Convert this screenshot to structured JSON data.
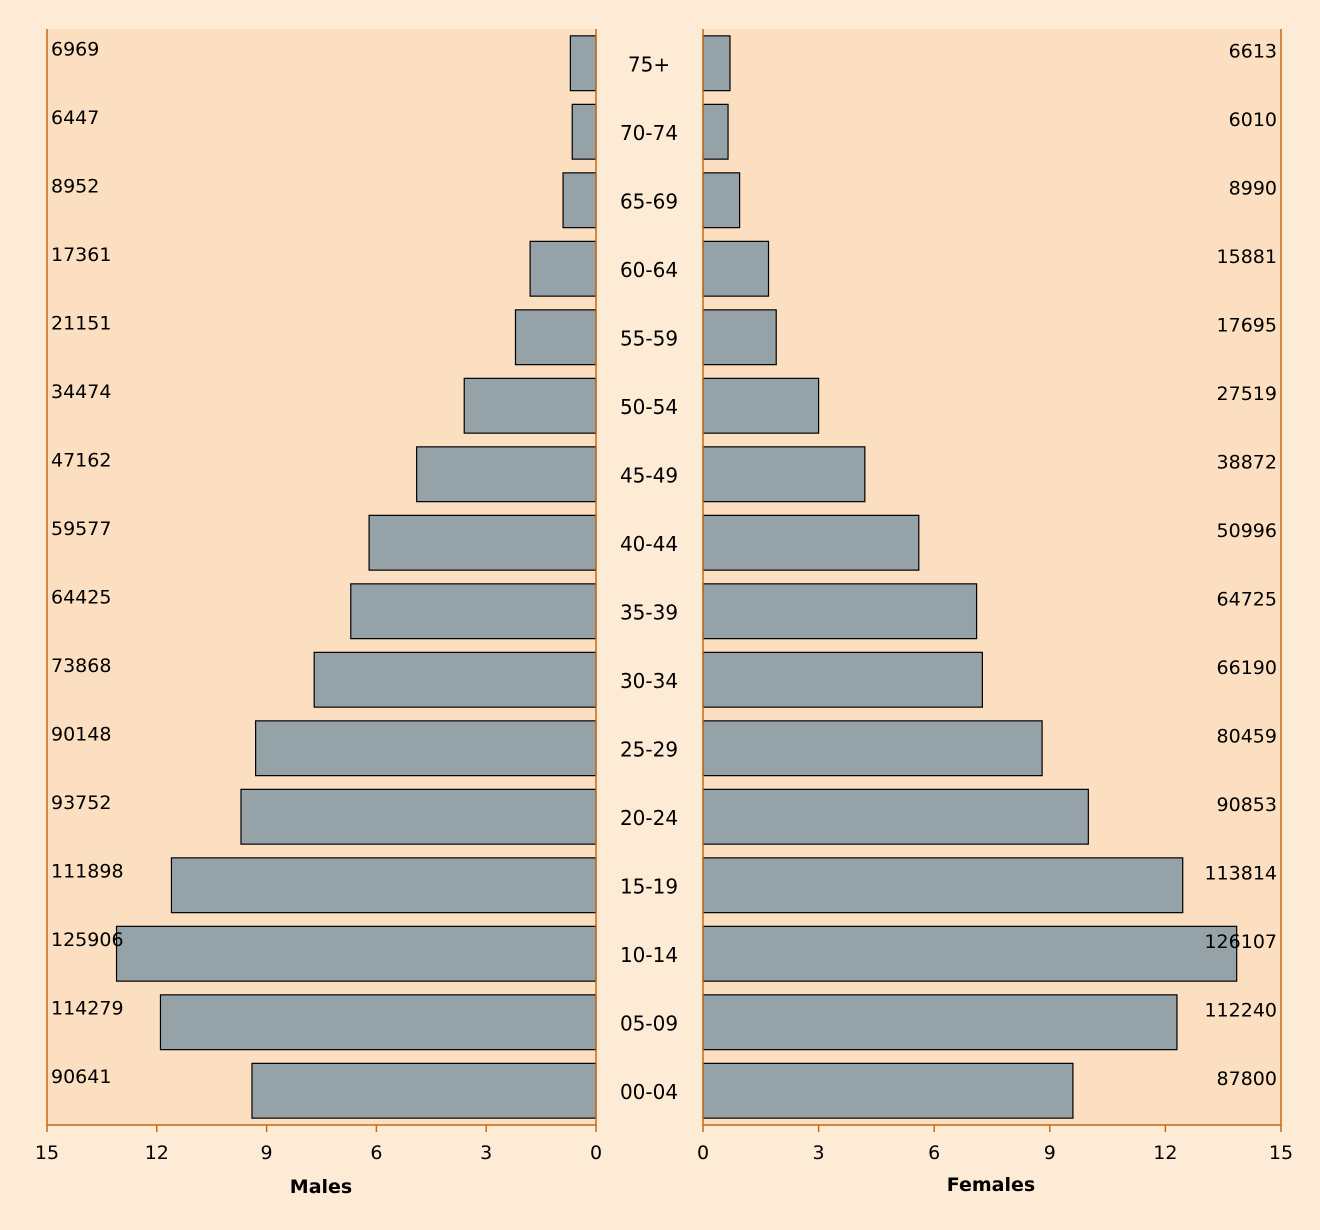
{
  "chart_data": {
    "type": "bar",
    "orientation": "horizontal",
    "subtype": "population-pyramid",
    "age_groups": [
      "75+",
      "70-74",
      "65-69",
      "60-64",
      "55-59",
      "50-54",
      "45-49",
      "40-44",
      "35-39",
      "30-34",
      "25-29",
      "20-24",
      "15-19",
      "10-14",
      "05-09",
      "00-04"
    ],
    "males": {
      "xlabel": "Males",
      "xlim": [
        15,
        0
      ],
      "ticks": [
        15,
        12,
        9,
        6,
        3,
        0
      ],
      "percent": [
        0.7,
        0.65,
        0.9,
        1.8,
        2.2,
        3.6,
        4.9,
        6.2,
        6.7,
        7.7,
        9.3,
        9.7,
        11.6,
        13.1,
        11.9,
        9.4
      ],
      "counts": [
        "6969",
        "6447",
        "8952",
        "17361",
        "21151",
        "34474",
        "47162",
        "59577",
        "64425",
        "73868",
        "90148",
        "93752",
        "111898",
        "125906",
        "114279",
        "90641"
      ]
    },
    "females": {
      "xlabel": "Females",
      "xlim": [
        0,
        15
      ],
      "ticks": [
        0,
        3,
        6,
        9,
        12,
        15
      ],
      "percent": [
        0.7,
        0.65,
        0.95,
        1.7,
        1.9,
        3.0,
        4.2,
        5.6,
        7.1,
        7.25,
        8.8,
        10.0,
        12.45,
        13.85,
        12.3,
        9.6
      ],
      "counts": [
        "6613",
        "6010",
        "8990",
        "15881",
        "17695",
        "27519",
        "38872",
        "50996",
        "64725",
        "66190",
        "80459",
        "90853",
        "113814",
        "126107",
        "112240",
        "87800"
      ]
    },
    "grid": false,
    "colors": {
      "bar": "#95a3a9",
      "plot_bg": "#fbdfc0",
      "page_bg": "#fdebd6",
      "axis": "#c46a17"
    }
  }
}
